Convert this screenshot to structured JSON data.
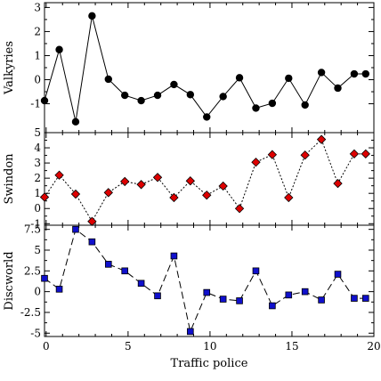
{
  "chart_data": {
    "type": "line",
    "xlabel": "Traffic police",
    "xlim": [
      -0.1,
      20
    ],
    "xticks": [
      0,
      5,
      10,
      15,
      20
    ],
    "x": [
      -0.1,
      0.8,
      1.8,
      2.8,
      3.8,
      4.8,
      5.8,
      6.8,
      7.8,
      8.8,
      9.8,
      10.8,
      11.8,
      12.8,
      13.8,
      14.8,
      15.8,
      16.8,
      17.8,
      18.8,
      19.5
    ],
    "panels": [
      {
        "ylabel": "Valkyries",
        "ylim": [
          -2.2,
          3.2
        ],
        "yticks": [
          -1,
          0,
          1,
          2,
          3
        ],
        "series": [
          {
            "marker": "circle",
            "color": "#000000",
            "linestyle": "solid",
            "values": [
              -0.87,
              1.25,
              -1.75,
              2.65,
              0.02,
              -0.65,
              -0.87,
              -0.65,
              -0.2,
              -0.62,
              -1.55,
              -0.7,
              0.08,
              -1.18,
              -0.98,
              0.06,
              -1.05,
              0.3,
              -0.35,
              0.24,
              0.24
            ]
          }
        ]
      },
      {
        "ylabel": "Swindon",
        "ylim": [
          -1.1,
          5.0
        ],
        "yticks": [
          -1,
          0,
          1,
          2,
          3,
          4,
          5
        ],
        "series": [
          {
            "marker": "diamond",
            "color": "#dd0000",
            "linestyle": "dotted",
            "values": [
              0.75,
              2.2,
              0.95,
              -0.85,
              1.05,
              1.78,
              1.58,
              2.05,
              0.72,
              1.82,
              0.88,
              1.48,
              0.0,
              3.05,
              3.55,
              0.72,
              3.52,
              4.55,
              1.65,
              3.6,
              3.6
            ]
          }
        ]
      },
      {
        "ylabel": "Discworld",
        "ylim": [
          -5.4,
          8.0
        ],
        "yticks": [
          -5,
          -2.5,
          0,
          2.5,
          5,
          7.5
        ],
        "series": [
          {
            "marker": "square",
            "color": "#1010cc",
            "linestyle": "dashed",
            "values": [
              1.6,
              0.3,
              7.5,
              6.0,
              3.3,
              2.5,
              1.0,
              -0.5,
              4.3,
              -4.8,
              -0.1,
              -0.9,
              -1.1,
              2.5,
              -1.7,
              -0.4,
              0.0,
              -1.0,
              2.1,
              -0.8,
              -0.8
            ]
          }
        ]
      }
    ]
  }
}
